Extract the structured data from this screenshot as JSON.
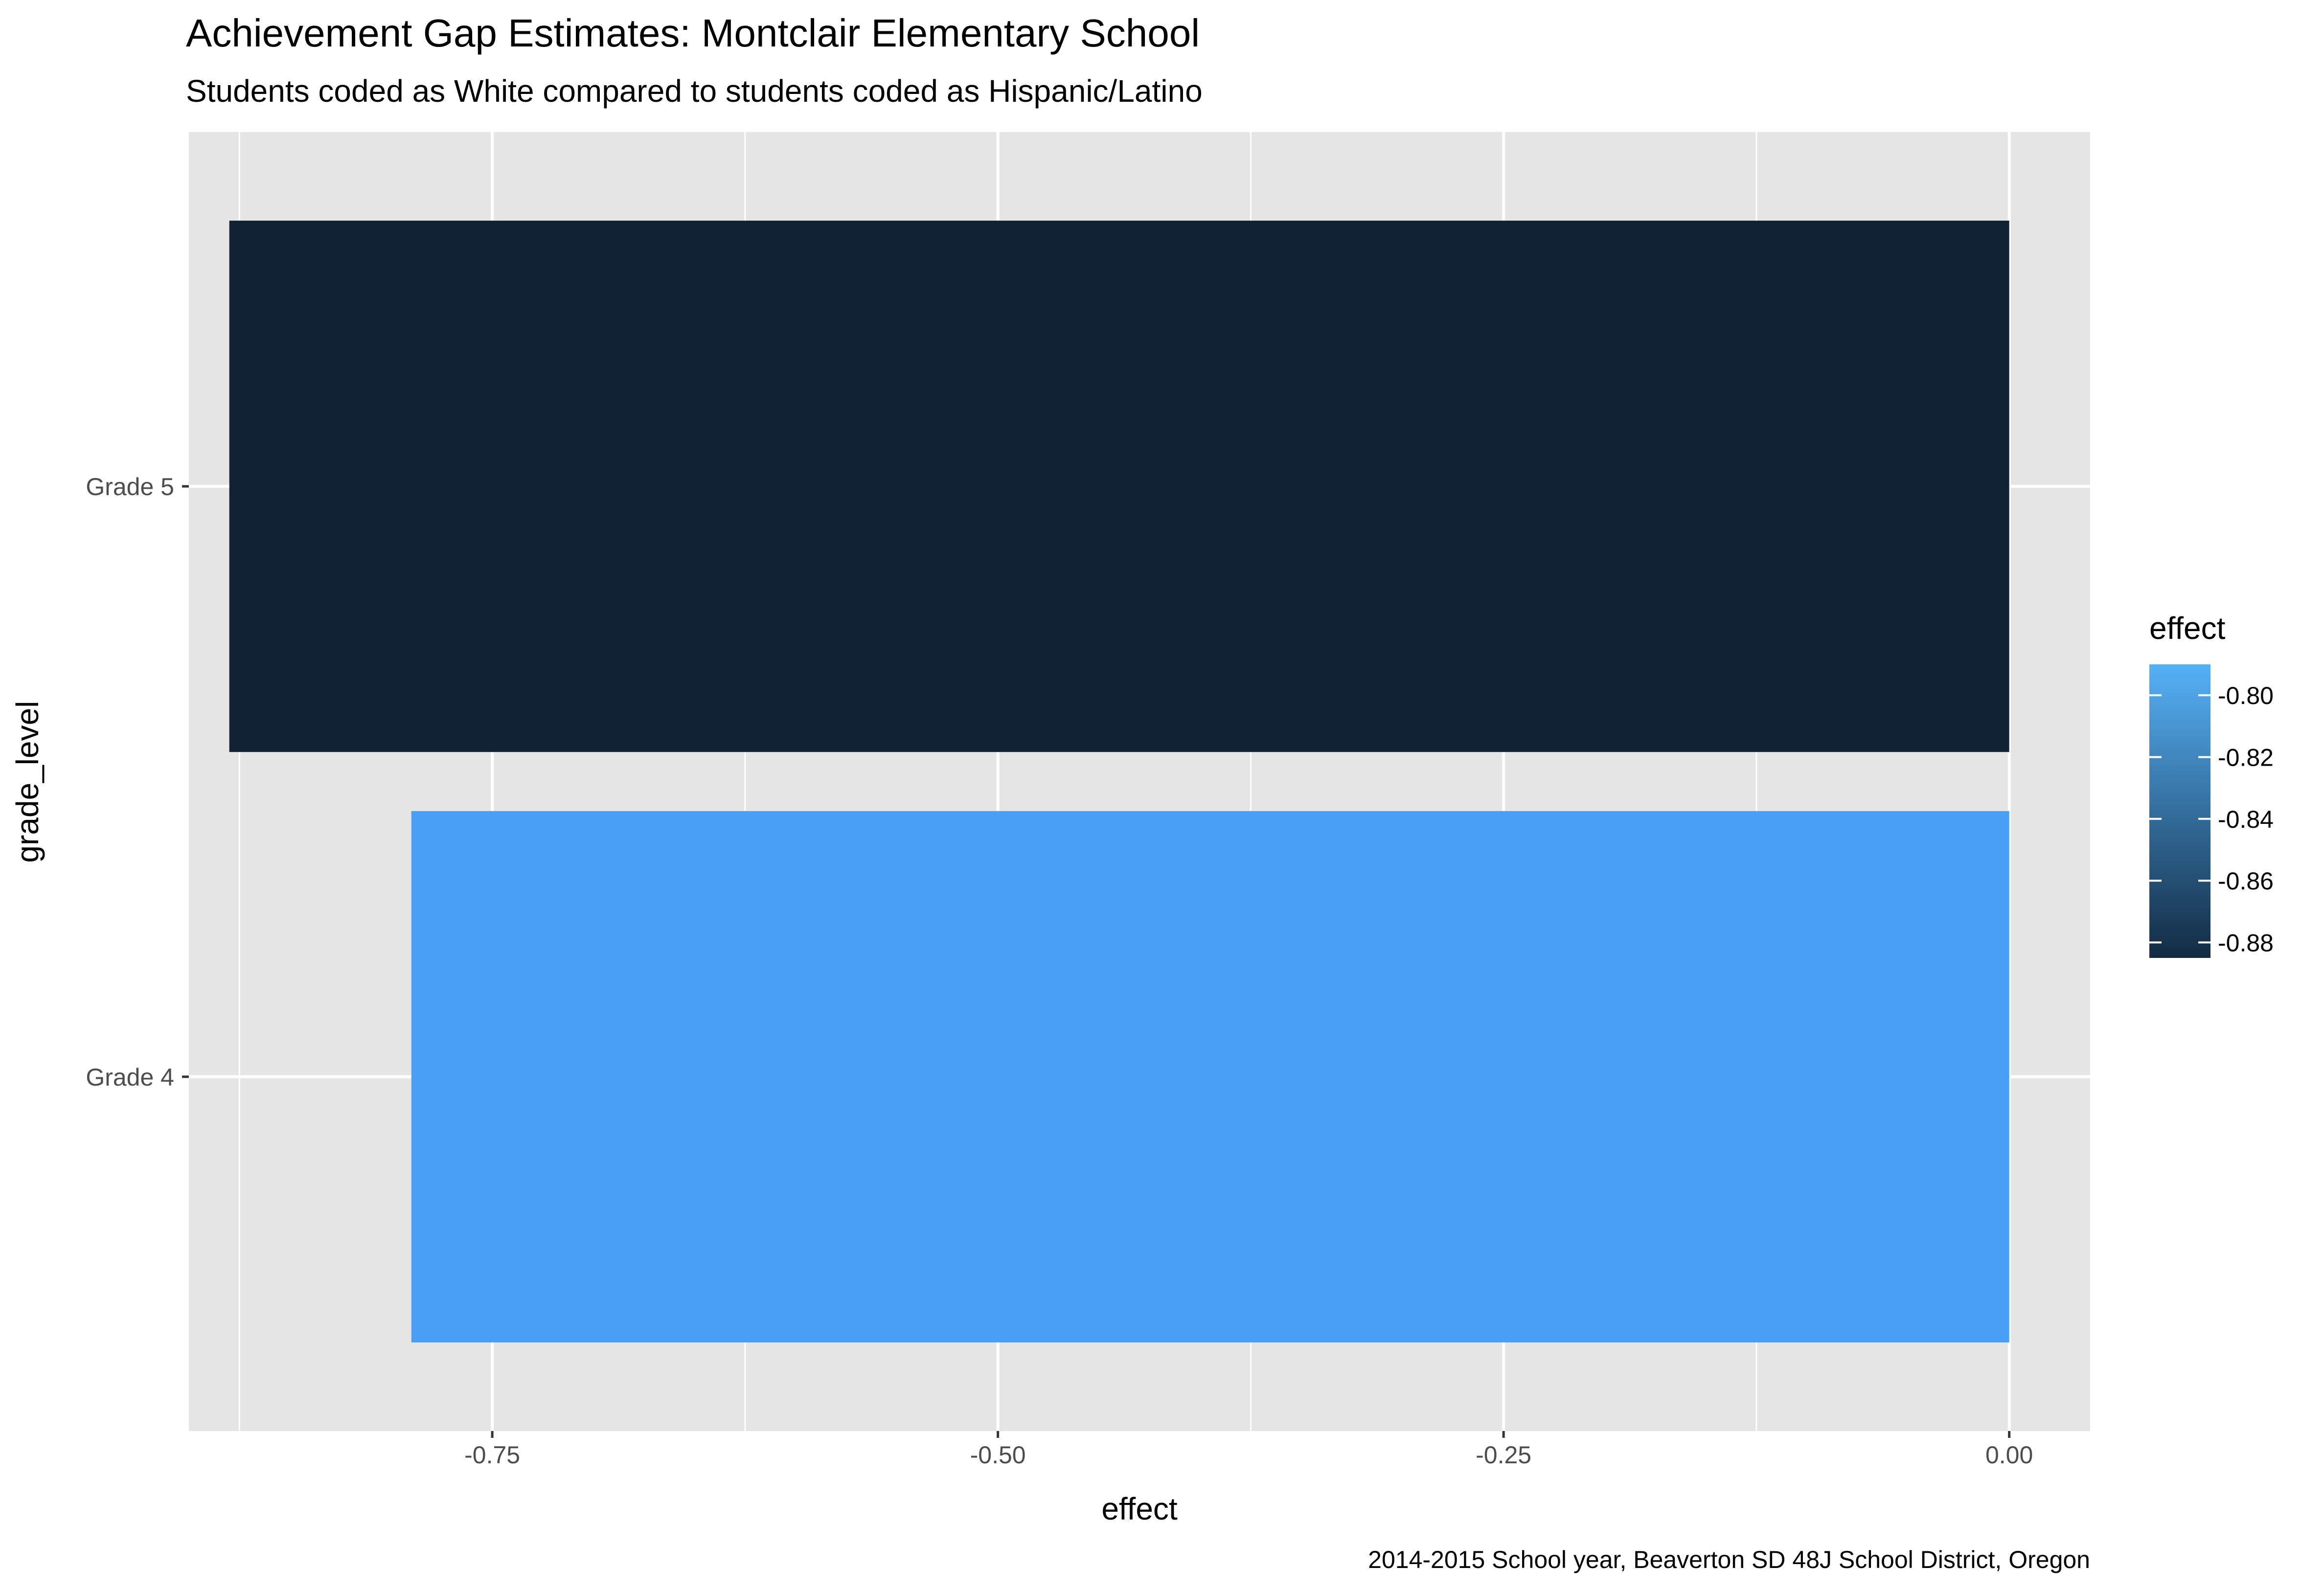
{
  "chart_data": {
    "type": "bar",
    "orientation": "horizontal",
    "title": "Achievement Gap Estimates: Montclair Elementary School",
    "subtitle": "Students coded as White compared to students coded as Hispanic/Latino",
    "caption": "2014-2015 School year, Beaverton SD 48J School District, Oregon",
    "xlabel": "effect",
    "ylabel": "grade_level",
    "categories": [
      "Grade 4",
      "Grade 5"
    ],
    "values": [
      -0.79,
      -0.88
    ],
    "xlim": [
      -0.9,
      0.04
    ],
    "x_ticks": [
      -0.75,
      -0.5,
      -0.25,
      0.0
    ],
    "x_tick_labels": [
      "-0.75",
      "-0.50",
      "-0.25",
      "0.00"
    ],
    "grid": true,
    "legend": {
      "title": "effect",
      "placement": "right",
      "type": "colorbar",
      "range": [
        -0.885,
        -0.79
      ],
      "ticks": [
        -0.8,
        -0.82,
        -0.84,
        -0.86,
        -0.88
      ],
      "tick_labels": [
        "-0.80",
        "-0.82",
        "-0.84",
        "-0.86",
        "-0.88"
      ],
      "color_low": "#132B43",
      "color_high": "#56B1F7"
    },
    "bar_colors": [
      "#489FF5",
      "#132233"
    ],
    "panel_background": "#E5E5E5",
    "grid_color": "#FFFFFF"
  }
}
